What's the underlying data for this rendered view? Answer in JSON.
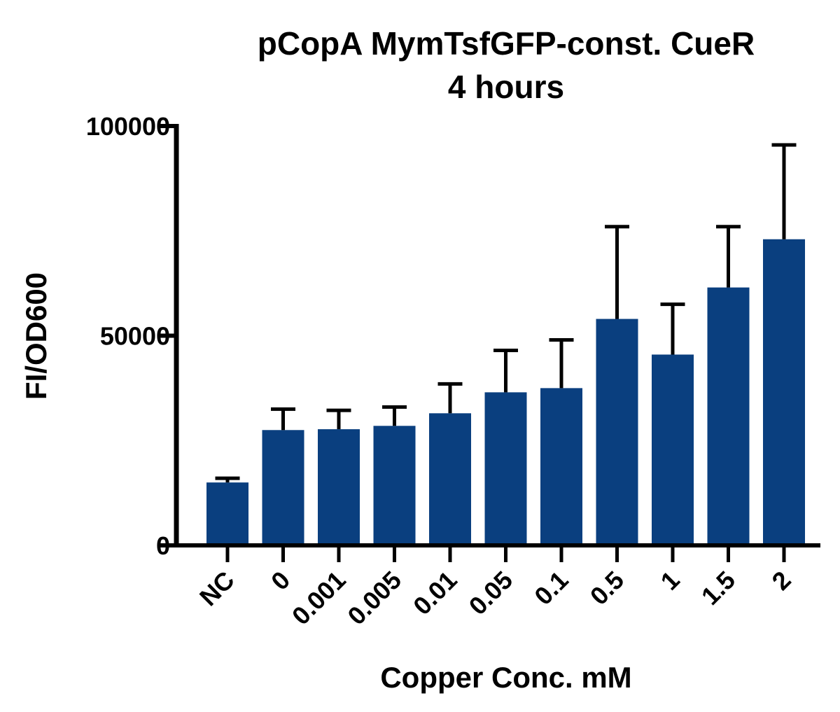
{
  "chart_data": {
    "type": "bar",
    "title": "pCopA MymTsfGFP-const. CueR",
    "subtitle": "4 hours",
    "xlabel": "Copper Conc. mM",
    "ylabel": "FI/OD600",
    "categories": [
      "NC",
      "0",
      "0.001",
      "0.005",
      "0.01",
      "0.05",
      "0.1",
      "0.5",
      "1",
      "1.5",
      "2"
    ],
    "values": [
      15000,
      27500,
      27700,
      28500,
      31500,
      36500,
      37500,
      54000,
      45500,
      61500,
      73000
    ],
    "error_upper": [
      16000,
      32500,
      32200,
      33000,
      38500,
      46500,
      49000,
      76000,
      57500,
      76000,
      95500
    ],
    "ylim": [
      0,
      100000
    ],
    "yticks": [
      0,
      50000,
      100000
    ],
    "ytick_labels": [
      "0",
      "50000",
      "100000"
    ],
    "grid": false,
    "legend": "none",
    "colors": {
      "bar": "#0a3f7f",
      "axis": "#000000",
      "error": "#000000"
    }
  }
}
